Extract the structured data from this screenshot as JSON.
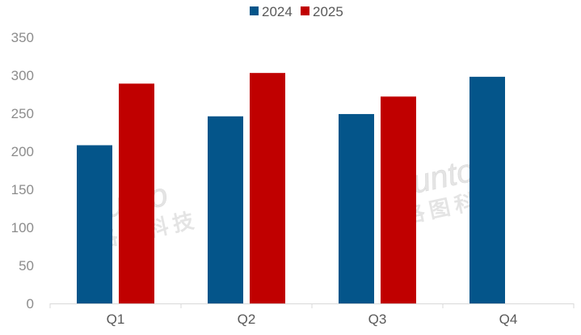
{
  "chart_data": {
    "type": "bar",
    "title": "",
    "xlabel": "",
    "ylabel": "",
    "categories": [
      "Q1",
      "Q2",
      "Q3",
      "Q4"
    ],
    "ylim": [
      0,
      350
    ],
    "yticks": [
      0,
      50,
      100,
      150,
      200,
      250,
      300,
      350
    ],
    "grid": false,
    "legend_position": "top",
    "series": [
      {
        "name": "2024",
        "color": "#04558A",
        "values": [
          208,
          246,
          249,
          298
        ]
      },
      {
        "name": "2025",
        "color": "#C00000",
        "values": [
          289,
          303,
          272,
          null
        ]
      }
    ],
    "watermark": "Runto 洛图科技"
  }
}
